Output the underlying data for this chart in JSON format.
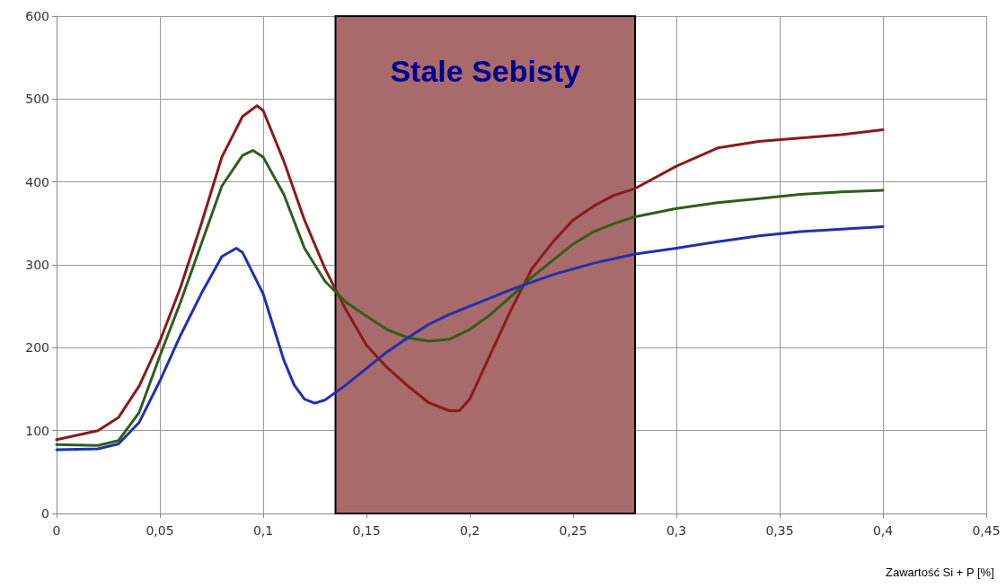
{
  "chart_data": {
    "type": "line",
    "xlabel": "Zawartość Si + P [%]",
    "xlim": [
      0,
      0.45
    ],
    "xticks": [
      0,
      {
        "value": 0.05,
        "label": "0,05"
      },
      {
        "value": 0.1,
        "label": "0,1"
      },
      {
        "value": 0.15,
        "label": "0,15"
      },
      {
        "value": 0.2,
        "label": "0,2"
      },
      {
        "value": 0.25,
        "label": "0,25"
      },
      {
        "value": 0.3,
        "label": "0,3"
      },
      {
        "value": 0.35,
        "label": "0,35"
      },
      {
        "value": 0.4,
        "label": "0,4"
      },
      {
        "value": 0.45,
        "label": "0,45"
      }
    ],
    "ylim": [
      0,
      600
    ],
    "yticks": [
      0,
      100,
      200,
      300,
      400,
      500,
      600
    ],
    "grid": true,
    "marker": "none",
    "line_style": "solid",
    "bands": [
      {
        "axis": "x",
        "from": 0.135,
        "to": 0.28,
        "label": "Stale Sebisty",
        "color": "#a86a6a"
      }
    ],
    "series": [
      {
        "color": "#8b1a1a",
        "x": [
          0,
          0.02,
          0.03,
          0.04,
          0.05,
          0.06,
          0.07,
          0.08,
          0.09,
          0.097,
          0.1,
          0.11,
          0.12,
          0.13,
          0.14,
          0.15,
          0.16,
          0.17,
          0.18,
          0.19,
          0.195,
          0.2,
          0.21,
          0.22,
          0.23,
          0.24,
          0.25,
          0.26,
          0.27,
          0.28,
          0.3,
          0.32,
          0.34,
          0.36,
          0.38,
          0.4
        ],
        "values": [
          89,
          100,
          116,
          154,
          208,
          273,
          349,
          430,
          479,
          492,
          486,
          425,
          354,
          295,
          246,
          203,
          176,
          154,
          134,
          124,
          124,
          138,
          192,
          246,
          295,
          327,
          354,
          371,
          384,
          392,
          419,
          441,
          449,
          453,
          457,
          463
        ]
      },
      {
        "color": "#2e5e1e",
        "x": [
          0,
          0.02,
          0.03,
          0.04,
          0.05,
          0.06,
          0.07,
          0.08,
          0.09,
          0.095,
          0.1,
          0.11,
          0.12,
          0.13,
          0.14,
          0.15,
          0.16,
          0.17,
          0.18,
          0.19,
          0.2,
          0.21,
          0.22,
          0.23,
          0.24,
          0.25,
          0.26,
          0.27,
          0.28,
          0.3,
          0.32,
          0.34,
          0.36,
          0.38,
          0.4
        ],
        "values": [
          83,
          82,
          88,
          122,
          190,
          255,
          325,
          395,
          432,
          438,
          430,
          385,
          320,
          280,
          255,
          238,
          222,
          212,
          208,
          210,
          222,
          240,
          262,
          285,
          305,
          325,
          340,
          350,
          358,
          368,
          375,
          380,
          385,
          388,
          390
        ]
      },
      {
        "color": "#2030b0",
        "x": [
          0,
          0.02,
          0.03,
          0.04,
          0.05,
          0.06,
          0.07,
          0.08,
          0.087,
          0.09,
          0.1,
          0.11,
          0.115,
          0.12,
          0.125,
          0.13,
          0.14,
          0.15,
          0.16,
          0.17,
          0.18,
          0.19,
          0.2,
          0.22,
          0.24,
          0.26,
          0.28,
          0.3,
          0.32,
          0.34,
          0.36,
          0.38,
          0.4
        ],
        "values": [
          77,
          78,
          84,
          110,
          160,
          215,
          265,
          310,
          320,
          315,
          265,
          185,
          155,
          138,
          133,
          137,
          155,
          175,
          195,
          212,
          228,
          240,
          250,
          270,
          288,
          302,
          313,
          320,
          328,
          335,
          340,
          343,
          346
        ]
      }
    ]
  }
}
